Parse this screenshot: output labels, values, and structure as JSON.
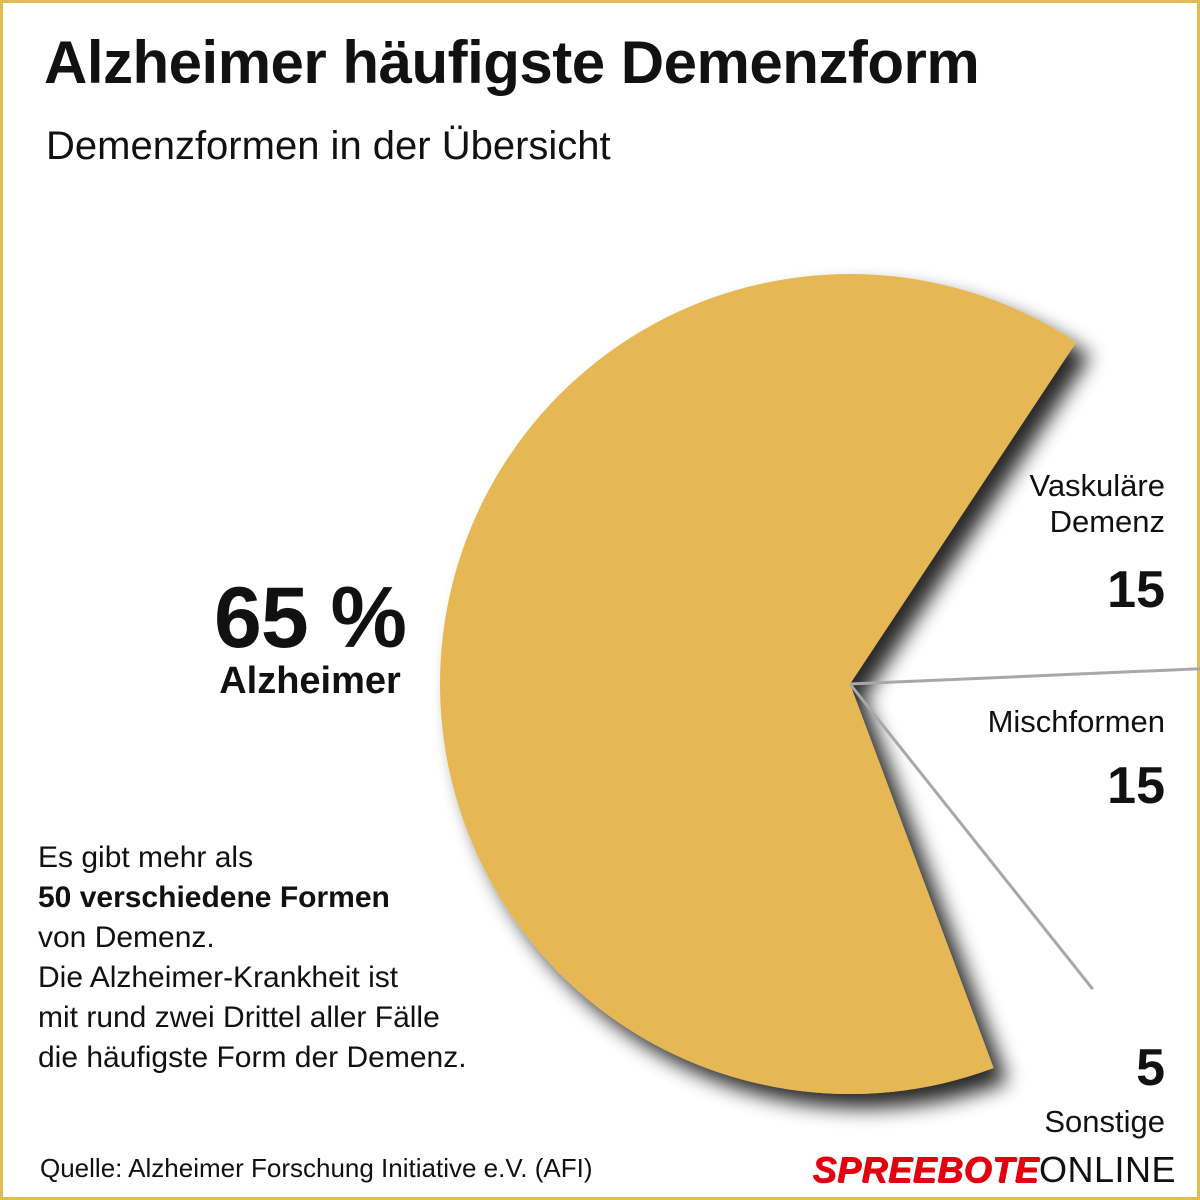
{
  "title": "Alzheimer häufigste Demenzform",
  "subtitle": "Demenzformen in der Übersicht",
  "chart_data": {
    "type": "pie",
    "slices": [
      {
        "label": "Alzheimer",
        "value": 65,
        "color": "#e6b854"
      },
      {
        "label": "Vaskuläre Demenz",
        "value": 15
      },
      {
        "label": "Mischformen",
        "value": 15
      },
      {
        "label": "Sonstige",
        "value": 5
      }
    ],
    "unit": "%"
  },
  "labels": {
    "alzheimer_value": "65 %",
    "alzheimer_name": "Alzheimer",
    "vaskulaer_name_line1": "Vaskuläre",
    "vaskulaer_name_line2": "Demenz",
    "vaskulaer_value": "15",
    "misch_name": "Mischformen",
    "misch_value": "15",
    "sonstige_value": "5",
    "sonstige_name": "Sonstige"
  },
  "note": {
    "line1": "Es gibt mehr als",
    "line2_bold": "50 verschiedene Formen",
    "line3": "von Demenz.",
    "line4": "Die Alzheimer-Krankheit ist",
    "line5": "mit rund zwei Drittel aller Fälle",
    "line6": "die häufigste Form der Demenz."
  },
  "source": "Quelle: Alzheimer Forschung Initiative e.V. (AFI)",
  "brand": {
    "part1": "SPREEBOTE",
    "part2": "ONLINE"
  },
  "colors": {
    "accent": "#e6b854",
    "frame": "#e3bb55",
    "divider": "#a8a8a8",
    "brand_red": "#e3000f"
  }
}
